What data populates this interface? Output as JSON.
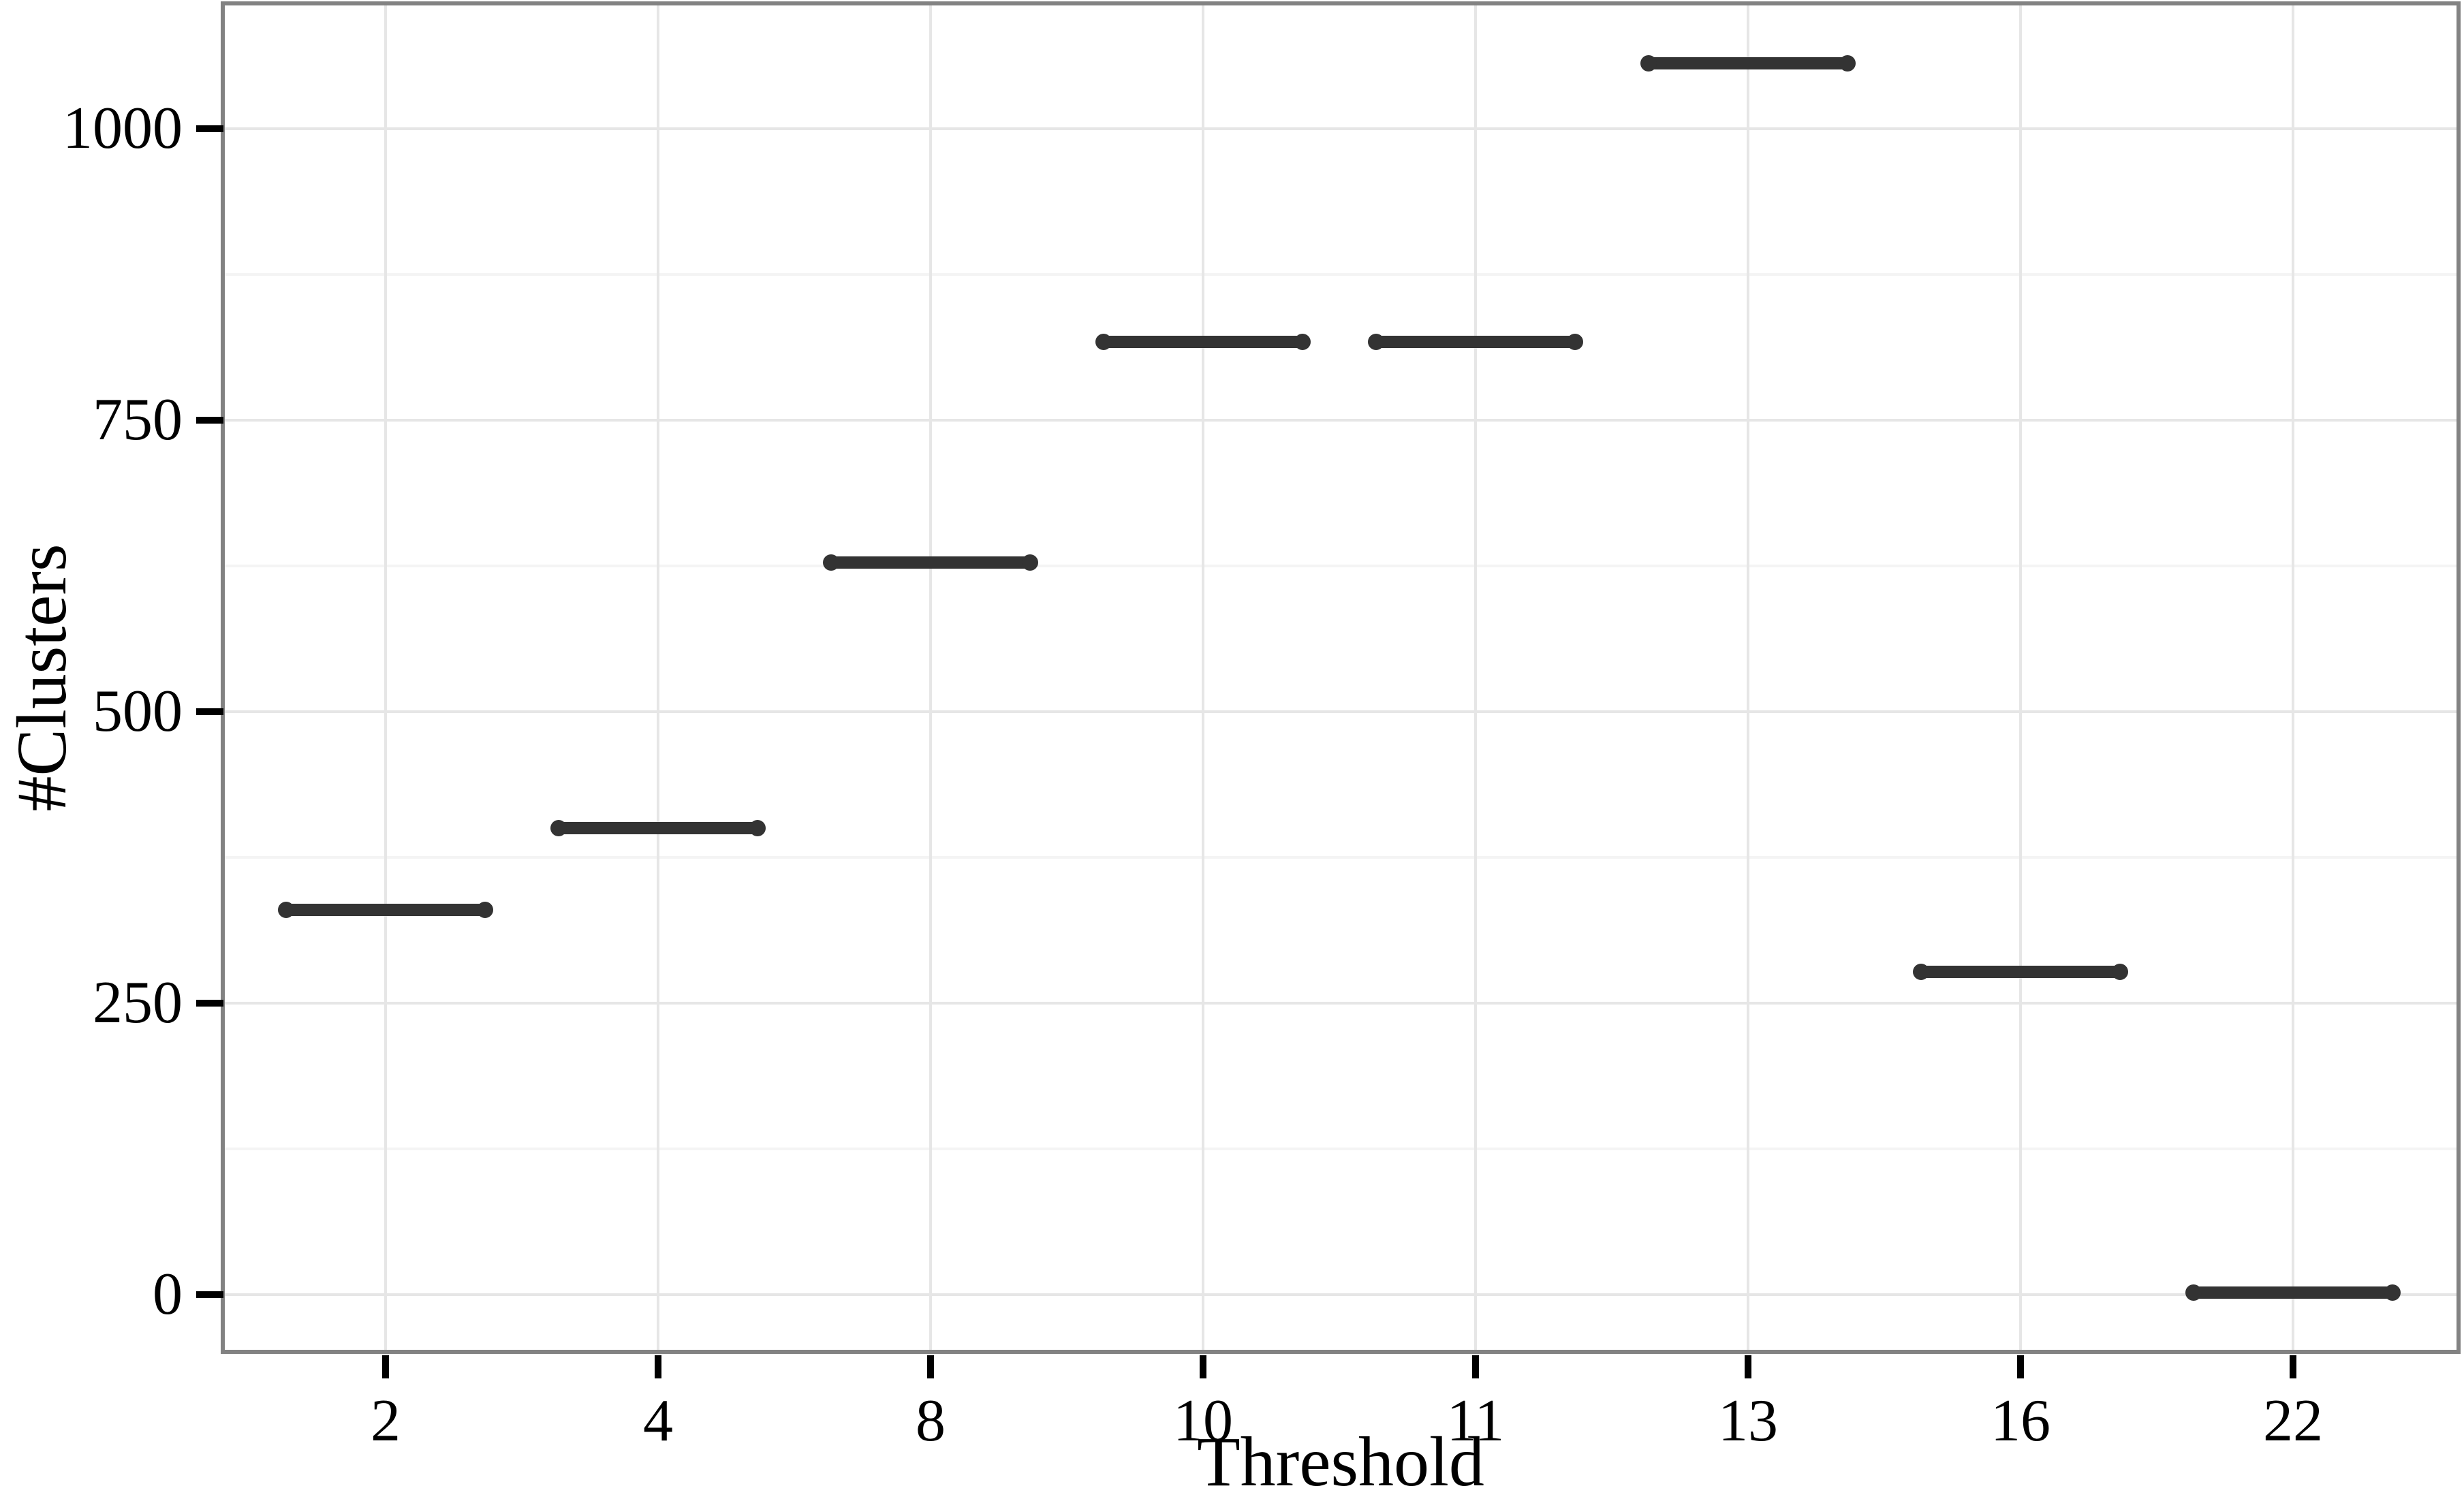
{
  "chart_data": {
    "type": "scatter",
    "marker": "horizontal-segment",
    "title": "",
    "xlabel": "Threshold",
    "ylabel": "#Clusters",
    "categories": [
      "2",
      "4",
      "8",
      "10",
      "11",
      "13",
      "16",
      "22"
    ],
    "series": [
      {
        "name": "#Clusters",
        "values": [
          330,
          400,
          628,
          817,
          817,
          1056,
          277,
          2
        ]
      }
    ],
    "ylim": [
      -48,
      1106
    ],
    "yticks_major": [
      0,
      250,
      500,
      750,
      1000
    ],
    "ytick_labels": [
      "0",
      "250",
      "500",
      "750",
      "1000"
    ],
    "yticks_minor": [
      125,
      375,
      625,
      875
    ],
    "grid": "on",
    "legend": "none",
    "colors": {
      "segment": "#333333",
      "panel_border": "#828282",
      "grid_major": "#e6e6e6",
      "grid_minor": "#f4f4f4",
      "text": "#000000",
      "background": "#ffffff"
    }
  }
}
